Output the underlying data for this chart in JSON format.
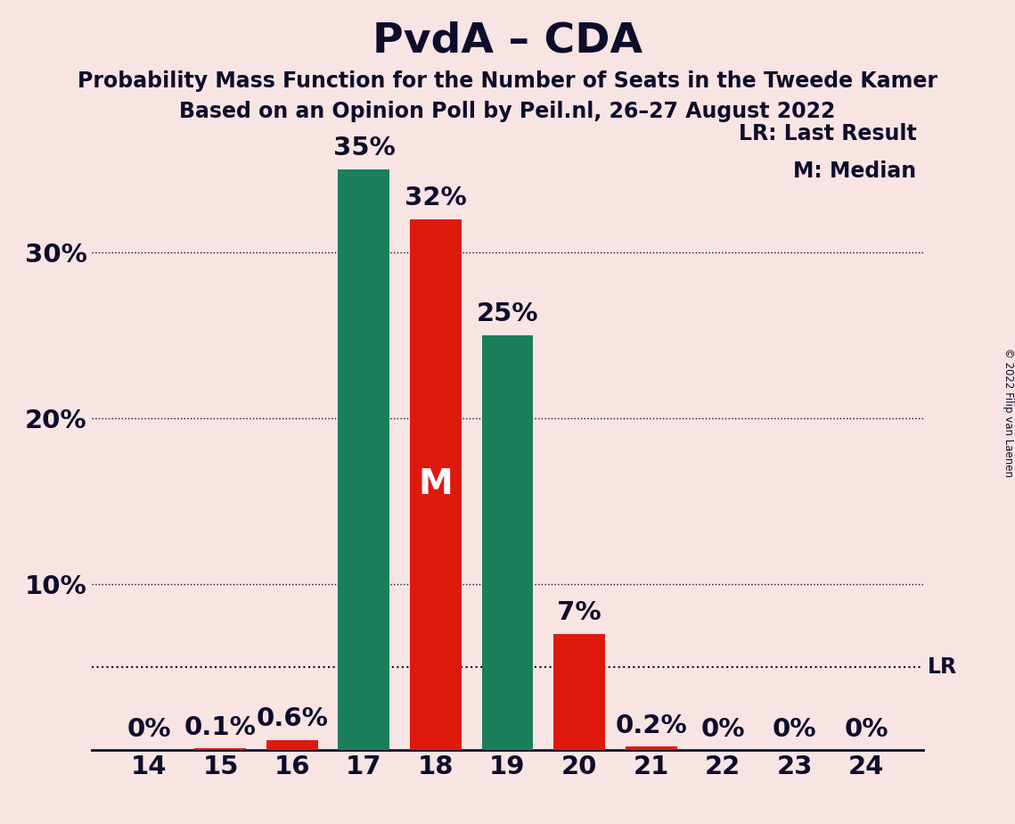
{
  "title": "PvdA – CDA",
  "subtitle1": "Probability Mass Function for the Number of Seats in the Tweede Kamer",
  "subtitle2": "Based on an Opinion Poll by Peil.nl, 26–27 August 2022",
  "copyright": "© 2022 Filip van Laenen",
  "seats": [
    14,
    15,
    16,
    17,
    18,
    19,
    20,
    21,
    22,
    23,
    24
  ],
  "green_values": [
    0.0,
    0.0,
    0.0,
    35.0,
    0.0,
    25.0,
    0.0,
    0.0,
    0.0,
    0.0,
    0.0
  ],
  "red_values": [
    0.0,
    0.1,
    0.6,
    0.0,
    32.0,
    0.0,
    7.0,
    0.2,
    0.0,
    0.0,
    0.0
  ],
  "green_color": "#1a7f5a",
  "red_color": "#e0190d",
  "background_color": "#f9e4e4",
  "bar_labels_green": [
    "",
    "",
    "",
    "35%",
    "",
    "25%",
    "",
    "",
    "",
    "",
    ""
  ],
  "bar_labels_red": [
    "0%",
    "0.1%",
    "0.6%",
    "",
    "32%",
    "",
    "7%",
    "0.2%",
    "0%",
    "0%",
    "0%"
  ],
  "median_seat": 18,
  "lr_value": 5.0,
  "lr_label": "LR",
  "yticks": [
    10,
    20,
    30
  ],
  "ytick_labels": [
    "10%",
    "20%",
    "30%"
  ],
  "ylim": [
    0,
    38
  ],
  "title_fontsize": 34,
  "subtitle_fontsize": 17,
  "axis_fontsize": 21,
  "bar_label_fontsize": 21,
  "legend_fontsize": 17,
  "m_fontsize": 28,
  "text_color": "#0d0d2b"
}
